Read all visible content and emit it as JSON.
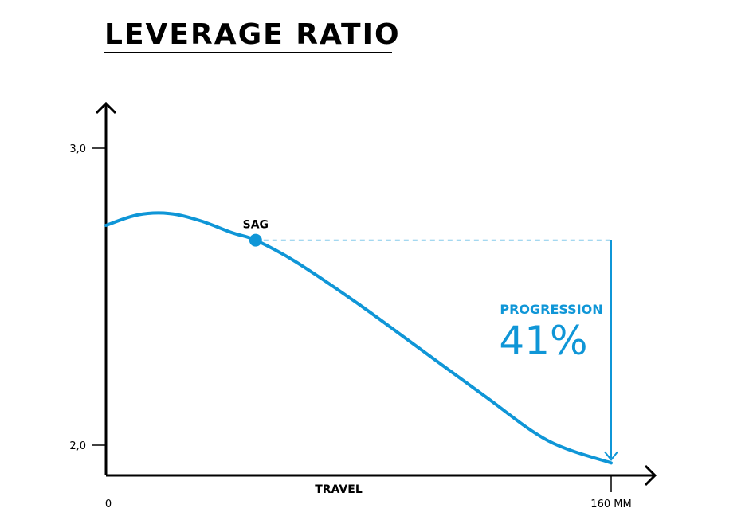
{
  "chart_data": {
    "type": "line",
    "title": "LEVERAGE RATIO",
    "xlabel": "TRAVEL",
    "ylabel": "",
    "xlim": [
      0,
      160
    ],
    "ylim": [
      1.93,
      3.0
    ],
    "x_unit": "MM",
    "y_ticks": [
      "3,0",
      "2,0"
    ],
    "x_tick_start": "0",
    "x_tick_end": "160 MM",
    "grid": false,
    "series": [
      {
        "color": "#0f96d7",
        "x": [
          0,
          10,
          20,
          30,
          40,
          47.4,
          60,
          80,
          100,
          120,
          140,
          160
        ],
        "y": [
          2.74,
          2.775,
          2.78,
          2.755,
          2.715,
          2.69,
          2.618,
          2.475,
          2.32,
          2.165,
          2.015,
          1.94
        ]
      }
    ],
    "annotations": {
      "sag": {
        "label": "SAG",
        "x": 47.4,
        "y": 2.69
      },
      "progression": {
        "label": "PROGRESSION",
        "value": "41%"
      }
    },
    "accent_color": "#0f96d7"
  }
}
